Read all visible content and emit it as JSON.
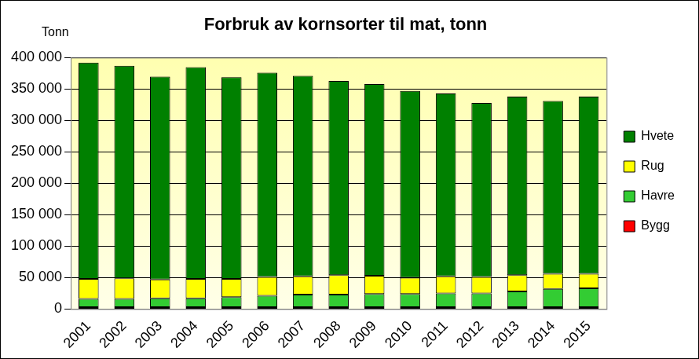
{
  "chart_data": {
    "type": "bar",
    "title": "Forbruk av kornsorter til mat, tonn",
    "ylabel": "Tonn",
    "categories": [
      "2001",
      "2002",
      "2003",
      "2004",
      "2005",
      "2006",
      "2007",
      "2008",
      "2009",
      "2010",
      "2011",
      "2012",
      "2013",
      "2014",
      "2015"
    ],
    "series": [
      {
        "name": "Bygg",
        "color": "#ff0000",
        "values": [
          3000,
          3000,
          3000,
          3000,
          3000,
          3000,
          3000,
          3000,
          3000,
          3000,
          3000,
          3000,
          3000,
          3000,
          3000
        ]
      },
      {
        "name": "Havre",
        "color": "#33cc33",
        "values": [
          13000,
          13000,
          14000,
          14000,
          16000,
          18000,
          20000,
          20000,
          21000,
          21000,
          22000,
          22000,
          25000,
          29000,
          30000
        ]
      },
      {
        "name": "Rug",
        "color": "#ffff00",
        "values": [
          32000,
          33000,
          30000,
          31000,
          29000,
          30000,
          29000,
          31000,
          29000,
          26000,
          27000,
          26000,
          26000,
          24000,
          23000
        ]
      },
      {
        "name": "Hvete",
        "color": "#008000",
        "values": [
          344000,
          338000,
          323000,
          337000,
          321000,
          325000,
          319000,
          309000,
          305000,
          297000,
          291000,
          277000,
          284000,
          275000,
          282000
        ]
      }
    ],
    "ylim": [
      0,
      400000
    ],
    "yticks": [
      {
        "value": 0,
        "label": "0"
      },
      {
        "value": 50000,
        "label": "50 000"
      },
      {
        "value": 100000,
        "label": "100 000"
      },
      {
        "value": 150000,
        "label": "150 000"
      },
      {
        "value": 200000,
        "label": "200 000"
      },
      {
        "value": 250000,
        "label": "250 000"
      },
      {
        "value": 300000,
        "label": "300 000"
      },
      {
        "value": 350000,
        "label": "350 000"
      },
      {
        "value": 400000,
        "label": "400 000"
      }
    ],
    "stacked": true,
    "grid": true,
    "legend": "right"
  }
}
